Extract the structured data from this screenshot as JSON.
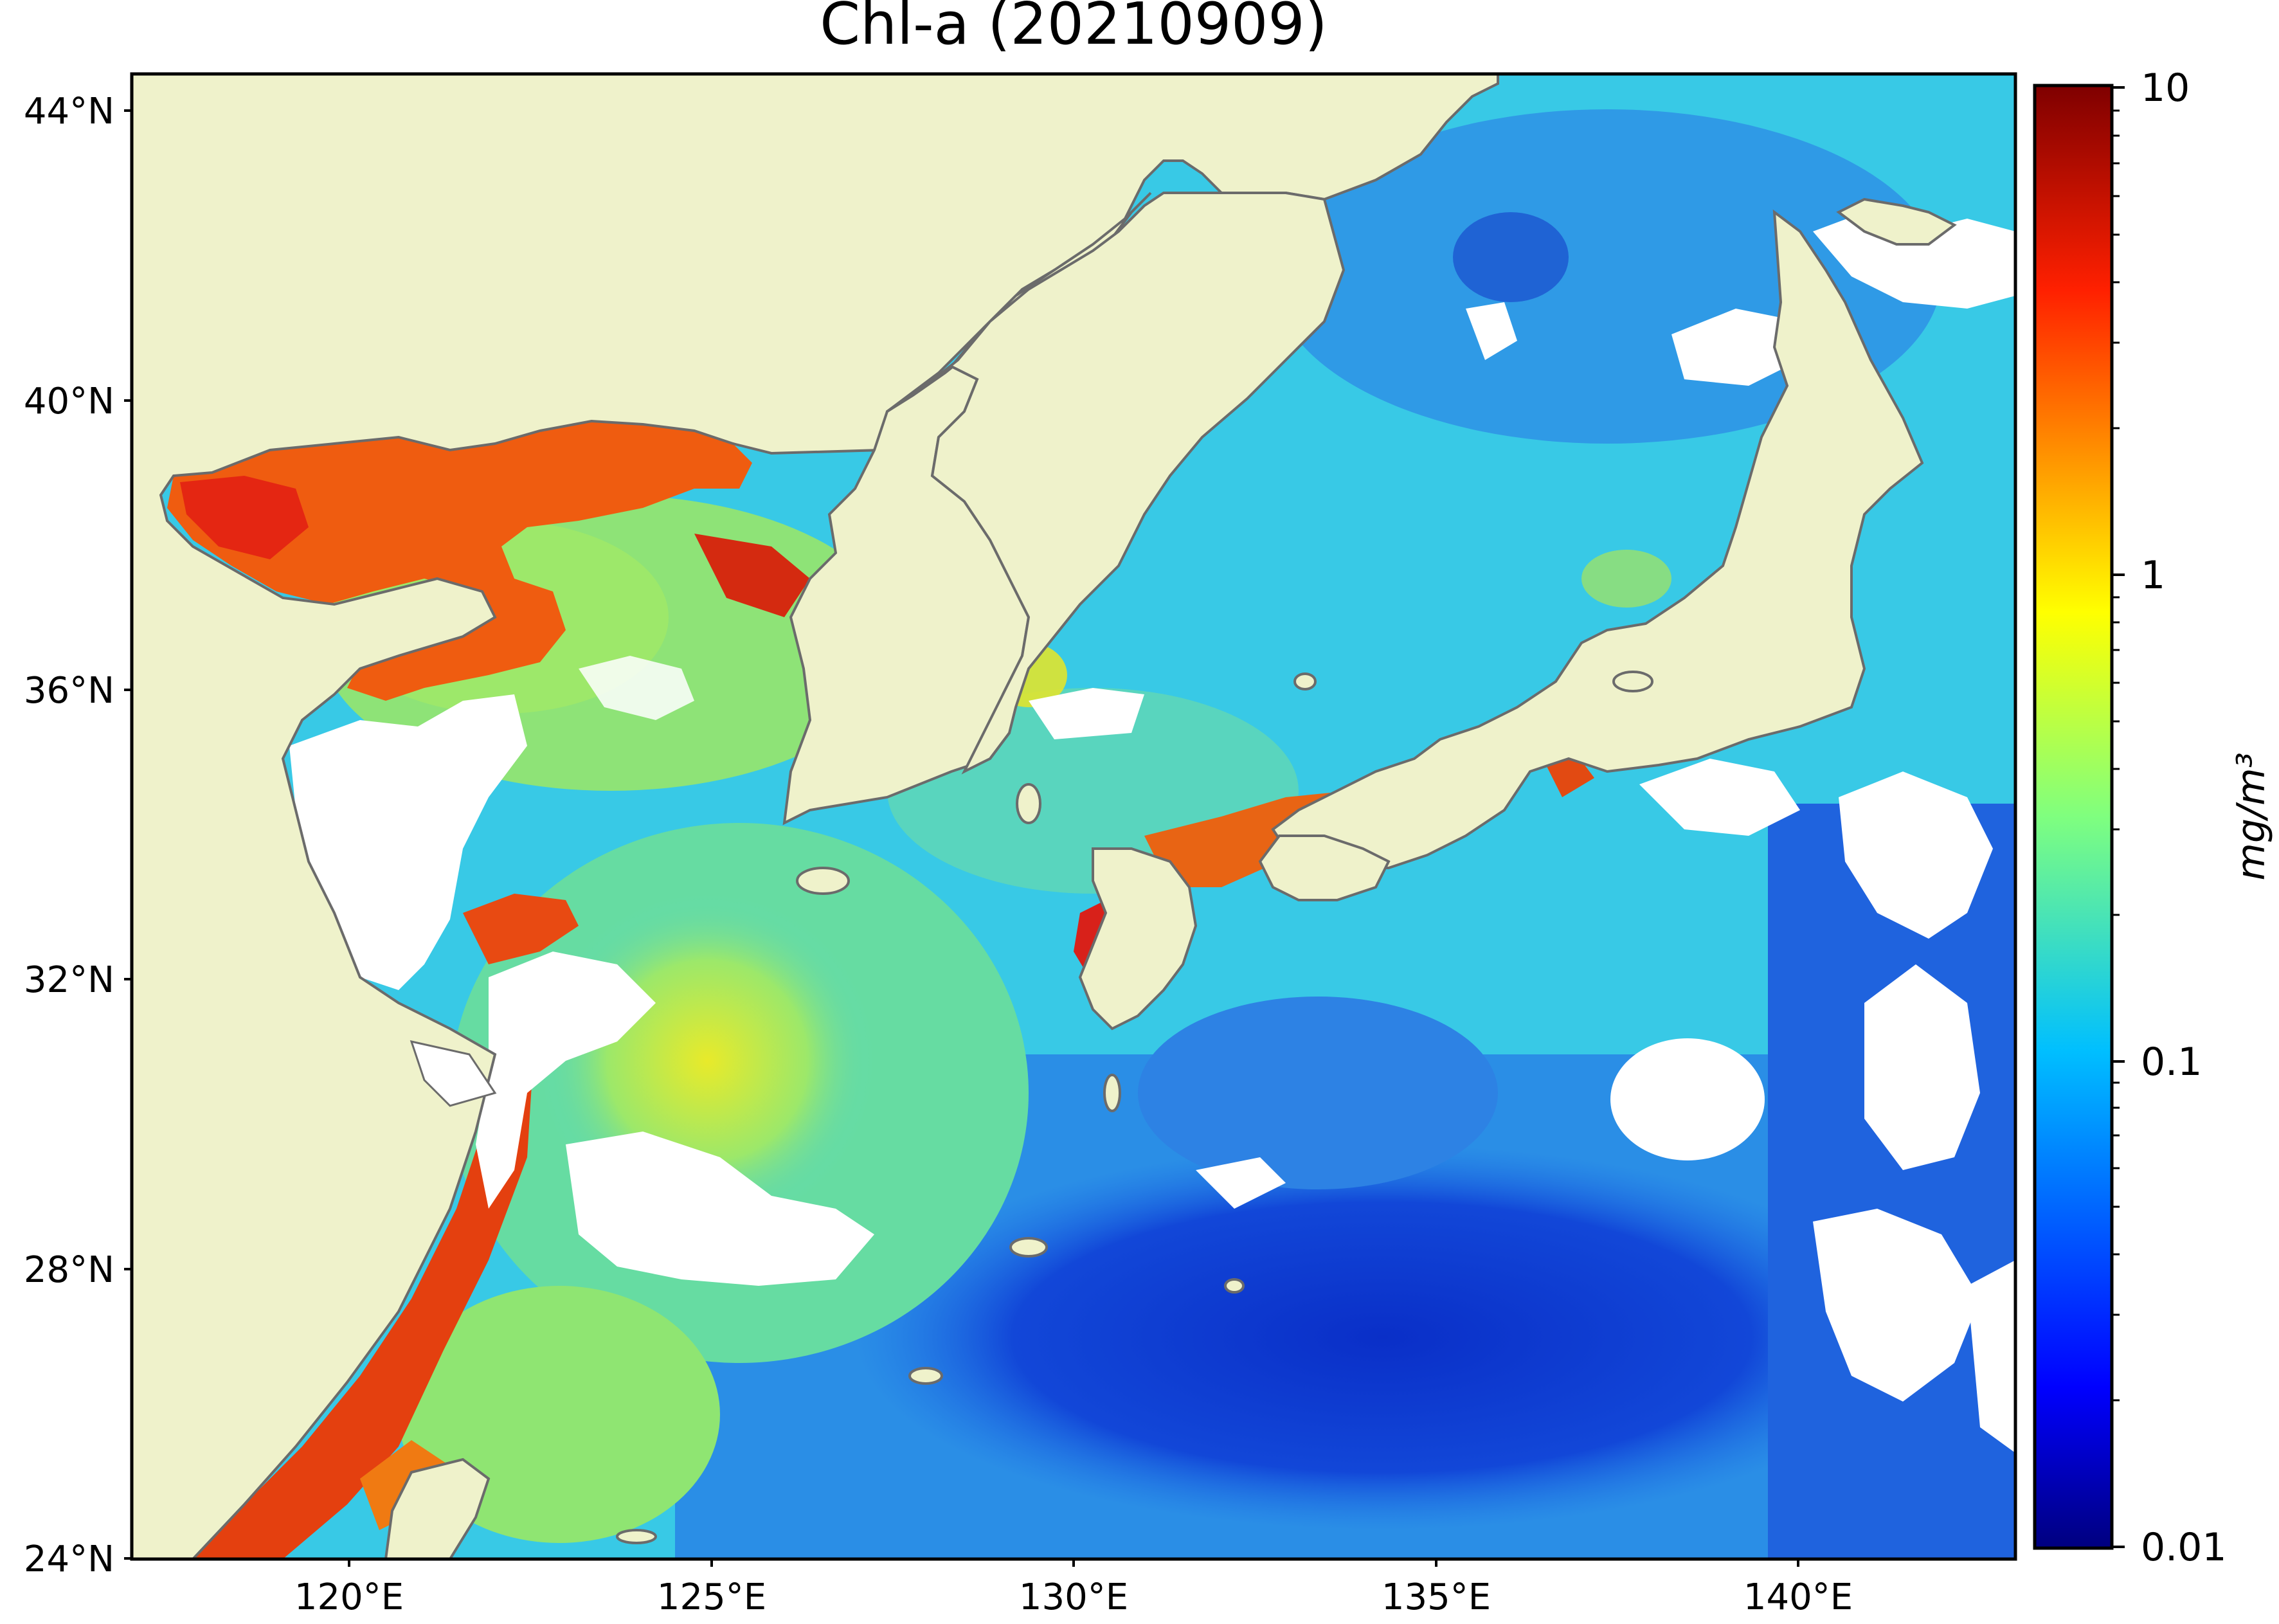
{
  "title": "Chl-a (20210909)",
  "map": {
    "lat_ticks": [
      "44°N",
      "40°N",
      "36°N",
      "32°N",
      "28°N",
      "24°N"
    ],
    "lon_ticks": [
      "120°E",
      "125°E",
      "130°E",
      "135°E",
      "140°E"
    ],
    "lat_range": [
      24,
      44.5
    ],
    "lon_range": [
      117,
      143
    ]
  },
  "colorbar": {
    "label": "mg/m³",
    "ticks": [
      "10",
      "1",
      "0.1",
      "0.01"
    ],
    "scale": "log",
    "range": [
      0.01,
      10
    ],
    "colormap": "jet"
  },
  "colors": {
    "land": "#EFF2CB",
    "no_data": "#FFFFFF",
    "coastline": "#6B6B6B",
    "low_chl": "#0A33D0",
    "mid_chl": "#36C8EA",
    "high_chl": "#E93A0F"
  }
}
